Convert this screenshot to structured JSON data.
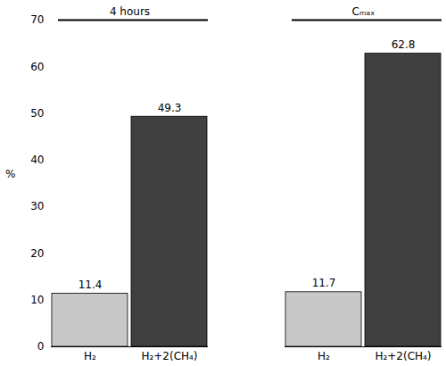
{
  "chart_data": {
    "type": "bar",
    "categories": [
      "4 hours",
      "Cₘₐₓ"
    ],
    "series": [
      {
        "name": "H₂",
        "color": "#c8c8c8",
        "values": [
          11.4,
          11.7
        ]
      },
      {
        "name": "H₂+2(CH₄)",
        "color": "#404040",
        "values": [
          49.3,
          62.8
        ]
      }
    ],
    "ylabel": "%",
    "ylim": [
      0,
      70
    ],
    "yticks": [
      0,
      10,
      20,
      30,
      40,
      50,
      60,
      70
    ],
    "data_labels": true,
    "grid": false
  }
}
